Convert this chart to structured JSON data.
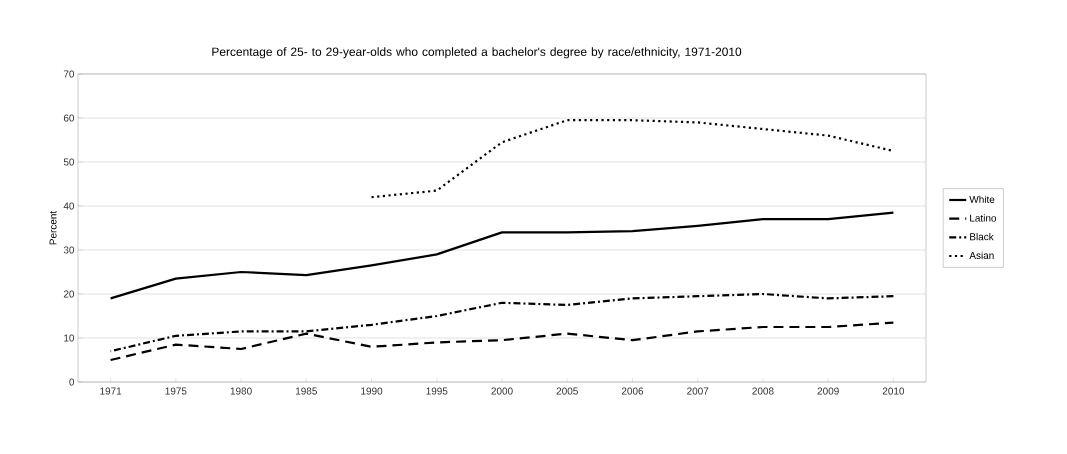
{
  "chart_data": {
    "type": "line",
    "title": "Percentage of 25- to 29-year-olds who completed a bachelor's degree by race/ethnicity, 1971-2010",
    "ylabel": "Percent",
    "categories": [
      "1971",
      "1975",
      "1980",
      "1985",
      "1990",
      "1995",
      "2000",
      "2005",
      "2006",
      "2007",
      "2008",
      "2009",
      "2010"
    ],
    "series": [
      {
        "name": "White",
        "color": "#000000",
        "line_style": "solid",
        "values": [
          19,
          23.5,
          25,
          24.3,
          26.5,
          29,
          34,
          34,
          34.3,
          35.5,
          37,
          37,
          38.5
        ]
      },
      {
        "name": "Latino",
        "color": "#000000",
        "line_style": "dashed",
        "values": [
          5,
          8.5,
          7.5,
          11,
          8,
          9,
          9.5,
          11,
          9.5,
          11.5,
          12.5,
          12.5,
          13.5
        ]
      },
      {
        "name": "Black",
        "color": "#000000",
        "line_style": "dashdot",
        "values": [
          7,
          10.5,
          11.5,
          11.5,
          13,
          15,
          18,
          17.5,
          19,
          19.5,
          20,
          19,
          19.5
        ]
      },
      {
        "name": "Asian",
        "color": "#000000",
        "line_style": "dotted",
        "values": [
          null,
          null,
          null,
          null,
          42,
          43.5,
          54.5,
          59.5,
          59.5,
          59,
          57.5,
          56,
          52.5
        ]
      }
    ],
    "ylim": [
      0,
      70
    ],
    "yticks": [
      0,
      10,
      20,
      30,
      40,
      50,
      60,
      70
    ],
    "grid": "y",
    "legend": "right",
    "marker": "none"
  }
}
